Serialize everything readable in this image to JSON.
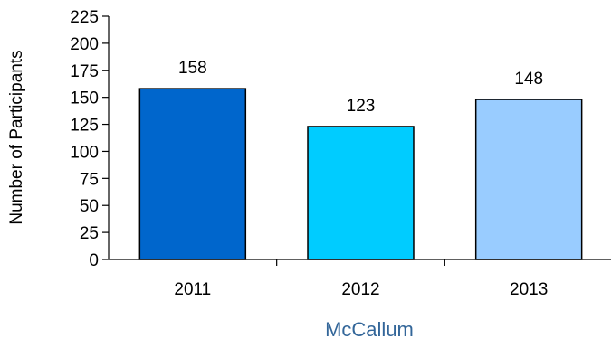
{
  "chart_data": {
    "type": "bar",
    "categories": [
      "2011",
      "2012",
      "2013"
    ],
    "values": [
      158,
      123,
      148
    ],
    "data_labels": [
      "158",
      "123",
      "148"
    ],
    "colors": [
      "#0066CC",
      "#00CCFF",
      "#99CCFF"
    ],
    "ylabel": "Number of Participants",
    "xlabel": "McCallum",
    "xlabel_color": "#336699",
    "ylim": [
      0,
      225
    ],
    "yticks": [
      0,
      25,
      50,
      75,
      100,
      125,
      150,
      175,
      200,
      225
    ],
    "grid": false,
    "legend": "none"
  }
}
